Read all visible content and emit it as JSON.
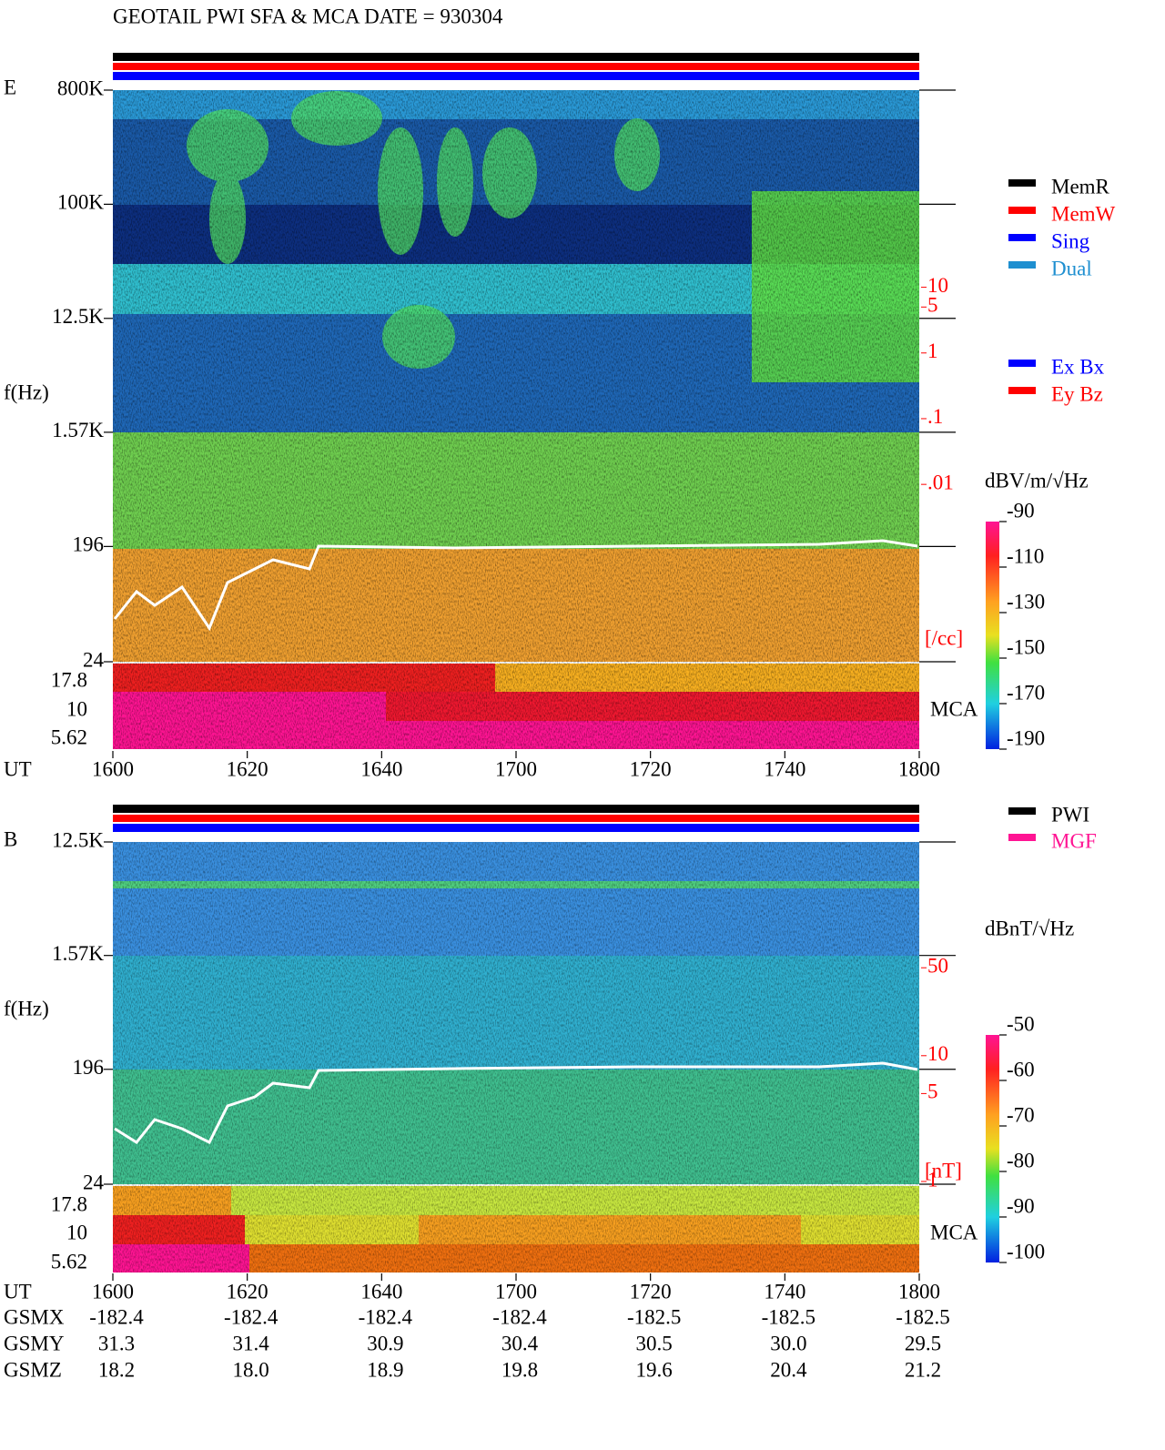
{
  "title": "GEOTAIL  PWI SFA & MCA   DATE = 930304",
  "time_axis": {
    "label": "UT",
    "ticks": [
      "1600",
      "1620",
      "1640",
      "1700",
      "1720",
      "1740",
      "1800"
    ]
  },
  "panels": [
    {
      "label": "E",
      "y_label": "f(Hz)",
      "flim": [
        24,
        800000
      ],
      "fticks": [
        {
          "value": 800000,
          "label": "800K"
        },
        {
          "value": 100000,
          "label": "100K"
        },
        {
          "value": 12500,
          "label": "12.5K"
        },
        {
          "value": 1570,
          "label": "1.57K"
        },
        196,
        24
      ],
      "mca_label": "MCA",
      "mca_ticks": [
        17.8,
        10,
        5.62
      ],
      "density_axis": {
        "unit": "[/cc]",
        "lim": [
          2e-05,
          10000
        ],
        "ticks": [
          10,
          5,
          1,
          {
            "value": 0.1,
            "label": ".1"
          },
          {
            "value": 0.01,
            "label": ".01"
          }
        ]
      },
      "colorbar": {
        "unit": "dBV/m/√Hz",
        "lim": [
          -190,
          -90
        ],
        "ticks": [
          -90,
          -110,
          -130,
          -150,
          -170,
          -190
        ]
      },
      "legend": [
        {
          "name": "MemR",
          "color": "#000000"
        },
        {
          "name": "MemW",
          "color": "#ff0000"
        },
        {
          "name": "Sing",
          "color": "#0000ff"
        },
        {
          "name": "Dual",
          "color": "#1e8fd0"
        },
        {
          "name": "Ex Bx",
          "color": "#0000ff"
        },
        {
          "name": "Ey Bz",
          "color": "#ff0000"
        }
      ]
    },
    {
      "label": "B",
      "y_label": "f(Hz)",
      "flim": [
        24,
        12500
      ],
      "fticks": [
        {
          "value": 12500,
          "label": "12.5K"
        },
        {
          "value": 1570,
          "label": "1.57K"
        },
        196,
        24
      ],
      "mca_label": "MCA",
      "mca_ticks": [
        17.8,
        10,
        5.62
      ],
      "density_axis": {
        "unit": "[nT]",
        "lim": [
          1,
          500
        ],
        "ticks": [
          50,
          10,
          5,
          1
        ]
      },
      "colorbar": {
        "unit": "dBnT/√Hz",
        "lim": [
          -100,
          -50
        ],
        "ticks": [
          -50,
          -60,
          -70,
          -80,
          -90,
          -100
        ]
      },
      "legend": [
        {
          "name": "PWI",
          "color": "#000000"
        },
        {
          "name": "MGF",
          "color": "#ff1493"
        }
      ]
    }
  ],
  "orbit": {
    "rows": [
      {
        "label": "GSMX",
        "values": [
          "-182.4",
          "-182.4",
          "-182.4",
          "-182.4",
          "-182.5",
          "-182.5",
          "-182.5"
        ]
      },
      {
        "label": "GSMY",
        "values": [
          "31.3",
          "31.4",
          "30.9",
          "30.4",
          "30.5",
          "30.0",
          "29.5"
        ]
      },
      {
        "label": "GSMZ",
        "values": [
          "18.2",
          "18.0",
          "18.9",
          "19.8",
          "19.6",
          "20.4",
          "21.2"
        ]
      }
    ]
  }
}
